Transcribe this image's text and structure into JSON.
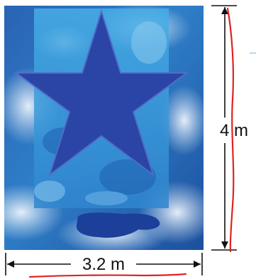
{
  "figure": {
    "width_label": "3.2 m",
    "height_label": "4 m"
  },
  "colors": {
    "sky_dark": "#1f4fa0",
    "sky_mid": "#2f7fc8",
    "sky_light": "#9cc8ea",
    "cloud": "#dbe8f4",
    "inner_panel": "#3aa0de",
    "star_fill": "#2a45a6",
    "star_stroke": "#4f6dc8",
    "blob": "#1c3f9a",
    "dimension_line": "#111111",
    "annotation_red": "#e02323"
  },
  "icons": {
    "star": "five-point-star-icon",
    "arrow_left": "arrowhead-left-icon",
    "arrow_right": "arrowhead-right-icon",
    "arrow_up": "arrowhead-up-icon",
    "arrow_down": "arrowhead-down-icon"
  }
}
